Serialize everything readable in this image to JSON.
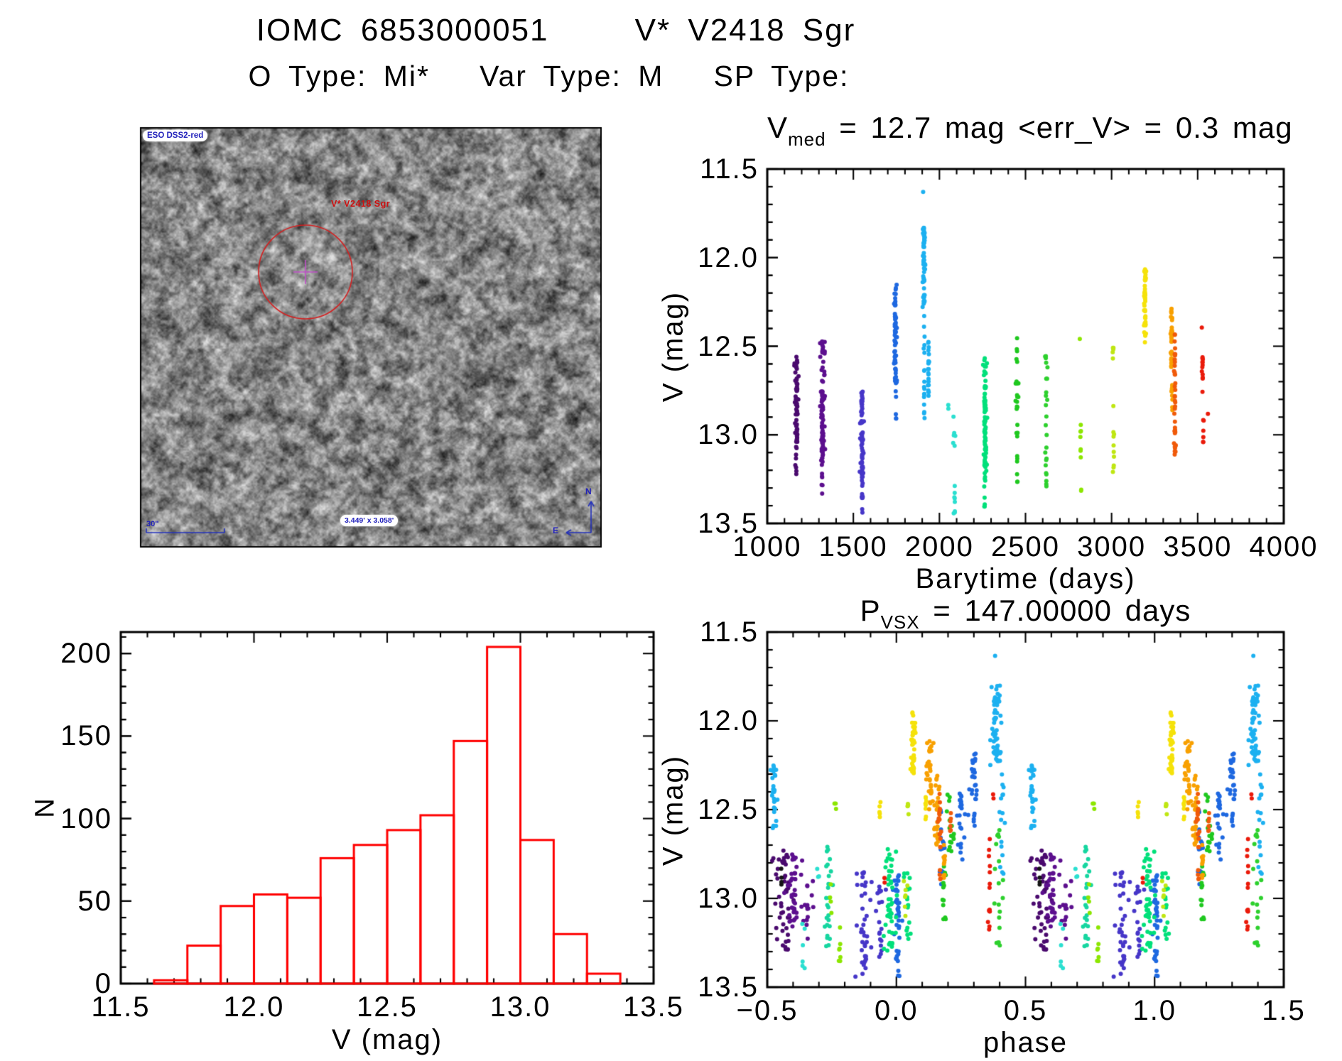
{
  "header": {
    "title": "IOMC 6853000051     V* V2418 Sgr",
    "subtitle": "O Type: Mi*   Var Type: M   SP Type:"
  },
  "sky_panel": {
    "survey_label": "ESO DSS2-red",
    "target_label": "V* V2418 Sgr",
    "scalebar_label": "30\"",
    "fov_label": "3.449' x 3.058'",
    "compass_north": "N",
    "compass_east": "E",
    "circle_color": "#d42020",
    "crosshair_color": "#c050c8",
    "annotation_color": "#2230bb"
  },
  "chart_data": [
    {
      "id": "lightcurve_barytime",
      "type": "scatter",
      "title": "V_med = 12.7 mag <err_V> = 0.3 mag",
      "title_parts": {
        "main": "V",
        "sub": "med",
        "rest": "  =  12.7 mag <err_V>  =  0.3 mag"
      },
      "xlabel": "Barytime (days)",
      "ylabel": "V (mag)",
      "xlim": [
        1000,
        4000
      ],
      "ylim": [
        11.5,
        13.5
      ],
      "xticks": [
        1000,
        1500,
        2000,
        2500,
        3000,
        3500,
        4000
      ],
      "xtick_labels": [
        "1000",
        "1500",
        "2000",
        "2500",
        "3000",
        "3500",
        "4000"
      ],
      "yticks": [
        11.5,
        12.0,
        12.5,
        13.0,
        13.5
      ],
      "ytick_labels": [
        "11.5",
        "12.0",
        "12.5",
        "13.0",
        "13.5"
      ],
      "x_minor": 100,
      "y_minor": 0.1,
      "grid": false,
      "clusters": [
        {
          "x": 1170,
          "dx": 14,
          "v0": 12.55,
          "v1": 13.05,
          "n": 38,
          "c": "#4a0a6e"
        },
        {
          "x": 1171,
          "dx": 8,
          "v0": 12.7,
          "v1": 13.1,
          "n": 22,
          "c": "#4a0a6e"
        },
        {
          "x": 1168,
          "dx": 6,
          "v0": 13.05,
          "v1": 13.3,
          "n": 7,
          "c": "#4a0a6e"
        },
        {
          "x": 1320,
          "dx": 16,
          "v0": 12.47,
          "v1": 13.2,
          "n": 55,
          "c": "#5c0f8e"
        },
        {
          "x": 1322,
          "dx": 9,
          "v0": 12.75,
          "v1": 13.15,
          "n": 40,
          "c": "#5c0f8e"
        },
        {
          "x": 1318,
          "dx": 6,
          "v0": 13.2,
          "v1": 13.35,
          "n": 6,
          "c": "#5c0f8e"
        },
        {
          "x": 1550,
          "dx": 13,
          "v0": 12.75,
          "v1": 13.3,
          "n": 45,
          "c": "#4636c8"
        },
        {
          "x": 1552,
          "dx": 7,
          "v0": 13.0,
          "v1": 13.45,
          "n": 28,
          "c": "#4636c8"
        },
        {
          "x": 1745,
          "dx": 9,
          "v0": 12.15,
          "v1": 12.8,
          "n": 42,
          "c": "#1e68e0"
        },
        {
          "x": 1742,
          "dx": 4,
          "v0": 12.25,
          "v1": 12.65,
          "n": 26,
          "c": "#1e68e0"
        },
        {
          "x": 1748,
          "dx": 3,
          "v0": 12.85,
          "v1": 13.02,
          "n": 3,
          "c": "#1e68e0"
        },
        {
          "x": 1910,
          "dx": 8,
          "v0": 11.83,
          "v1": 12.28,
          "n": 60,
          "c": "#1cb0f0"
        },
        {
          "x": 1912,
          "dx": 5,
          "v0": 12.3,
          "v1": 12.92,
          "n": 18,
          "c": "#1cb0f0"
        },
        {
          "x": 1906,
          "dx": 2,
          "v0": 11.61,
          "v1": 11.63,
          "n": 1,
          "c": "#1cb0f0"
        },
        {
          "x": 1936,
          "dx": 5,
          "v0": 12.45,
          "v1": 12.8,
          "n": 20,
          "c": "#1cb0f0"
        },
        {
          "x": 2052,
          "dx": 2,
          "v0": 12.82,
          "v1": 12.87,
          "n": 2,
          "c": "#2adfd0"
        },
        {
          "x": 2086,
          "dx": 7,
          "v0": 12.85,
          "v1": 13.08,
          "n": 6,
          "c": "#2adfd0"
        },
        {
          "x": 2088,
          "dx": 6,
          "v0": 13.2,
          "v1": 13.45,
          "n": 8,
          "c": "#2adfd0"
        },
        {
          "x": 2265,
          "dx": 13,
          "v0": 12.55,
          "v1": 13.3,
          "n": 48,
          "c": "#00e07a"
        },
        {
          "x": 2266,
          "dx": 7,
          "v0": 12.8,
          "v1": 13.2,
          "n": 40,
          "c": "#00e07a"
        },
        {
          "x": 2262,
          "dx": 5,
          "v0": 13.3,
          "v1": 13.42,
          "n": 4,
          "c": "#00e07a"
        },
        {
          "x": 2450,
          "dx": 9,
          "v0": 12.45,
          "v1": 13.05,
          "n": 22,
          "c": "#1fc81f"
        },
        {
          "x": 2452,
          "dx": 4,
          "v0": 13.1,
          "v1": 13.35,
          "n": 6,
          "c": "#1fc81f"
        },
        {
          "x": 2620,
          "dx": 8,
          "v0": 12.55,
          "v1": 13.3,
          "n": 24,
          "c": "#2dd02d"
        },
        {
          "x": 2820,
          "dx": 4,
          "v0": 12.9,
          "v1": 13.15,
          "n": 7,
          "c": "#8ce600"
        },
        {
          "x": 2816,
          "dx": 2,
          "v0": 12.42,
          "v1": 12.46,
          "n": 1,
          "c": "#8ce600"
        },
        {
          "x": 2824,
          "dx": 2,
          "v0": 13.28,
          "v1": 13.36,
          "n": 2,
          "c": "#8ce600"
        },
        {
          "x": 3008,
          "dx": 5,
          "v0": 12.48,
          "v1": 12.6,
          "n": 6,
          "c": "#bfe612"
        },
        {
          "x": 3012,
          "dx": 5,
          "v0": 12.75,
          "v1": 13.25,
          "n": 10,
          "c": "#bfe612"
        },
        {
          "x": 3195,
          "dx": 7,
          "v0": 12.05,
          "v1": 12.48,
          "n": 48,
          "c": "#f5e20a"
        },
        {
          "x": 3348,
          "dx": 6,
          "v0": 12.28,
          "v1": 12.62,
          "n": 38,
          "c": "#f8a000"
        },
        {
          "x": 3352,
          "dx": 4,
          "v0": 12.7,
          "v1": 12.88,
          "n": 12,
          "c": "#f8a000"
        },
        {
          "x": 3368,
          "dx": 6,
          "v0": 12.42,
          "v1": 13.12,
          "n": 40,
          "c": "#f05a0a"
        },
        {
          "x": 3528,
          "dx": 4,
          "v0": 12.55,
          "v1": 12.78,
          "n": 13,
          "c": "#ea1a0a"
        },
        {
          "x": 3532,
          "dx": 3,
          "v0": 12.9,
          "v1": 13.1,
          "n": 6,
          "c": "#ea1a0a"
        },
        {
          "x": 3524,
          "dx": 2,
          "v0": 12.38,
          "v1": 12.42,
          "n": 1,
          "c": "#ea1a0a"
        },
        {
          "x": 3560,
          "dx": 2,
          "v0": 12.88,
          "v1": 12.92,
          "n": 1,
          "c": "#ea1a0a"
        }
      ]
    },
    {
      "id": "histogram_v",
      "type": "bar",
      "title": "",
      "xlabel": "V (mag)",
      "ylabel": "N",
      "xlim": [
        11.5,
        13.5
      ],
      "ylim": [
        0,
        213
      ],
      "xticks": [
        11.5,
        12.0,
        12.5,
        13.0,
        13.5
      ],
      "xtick_labels": [
        "11.5",
        "12.0",
        "12.5",
        "13.0",
        "13.5"
      ],
      "yticks": [
        0,
        50,
        100,
        150,
        200
      ],
      "ytick_labels": [
        "0",
        "50",
        "100",
        "150",
        "200"
      ],
      "x_minor": 0.1,
      "y_minor": 10,
      "grid": false,
      "bin_start": 11.625,
      "bin_width": 0.125,
      "categories": [
        "11.625-11.75",
        "11.75-11.875",
        "11.875-12.0",
        "12.0-12.125",
        "12.125-12.25",
        "12.25-12.375",
        "12.375-12.5",
        "12.5-12.625",
        "12.625-12.75",
        "12.75-12.875",
        "12.875-13.0",
        "13.0-13.125",
        "13.125-13.25",
        "13.25-13.375"
      ],
      "values": [
        2,
        23,
        47,
        54,
        52,
        76,
        84,
        93,
        102,
        147,
        204,
        87,
        30,
        6
      ],
      "bar_color": "#ff0000"
    },
    {
      "id": "lightcurve_phase",
      "type": "scatter",
      "title": "P_VSX = 147.00000 days",
      "title_parts": {
        "main": "P",
        "sub": "VSX",
        "rest": "  =  147.00000 days"
      },
      "xlabel": "phase",
      "ylabel": "V (mag)",
      "xlim": [
        -0.5,
        1.5
      ],
      "ylim": [
        11.5,
        13.5
      ],
      "xticks": [
        -0.5,
        0.0,
        0.5,
        1.0,
        1.5
      ],
      "xtick_labels": [
        "−0.5",
        "0.0",
        "0.5",
        "1.0",
        "1.5"
      ],
      "yticks": [
        11.5,
        12.0,
        12.5,
        13.0,
        13.5
      ],
      "ytick_labels": [
        "11.5",
        "12.0",
        "12.5",
        "13.0",
        "13.5"
      ],
      "x_minor": 0.1,
      "y_minor": 0.1,
      "grid": false,
      "fold_repeat": true,
      "period_days": 147.0,
      "clusters": [
        {
          "x": 0.565,
          "dx": 0.05,
          "v0": 12.72,
          "v1": 13.3,
          "n": 50,
          "c": "#4a0a6e"
        },
        {
          "x": 0.6,
          "dx": 0.04,
          "v0": 12.75,
          "v1": 13.2,
          "n": 40,
          "c": "#5c0f8e"
        },
        {
          "x": 0.655,
          "dx": 0.025,
          "v0": 12.9,
          "v1": 13.25,
          "n": 14,
          "c": "#5c0f8e"
        },
        {
          "x": 0.875,
          "dx": 0.035,
          "v0": 12.85,
          "v1": 13.45,
          "n": 40,
          "c": "#4636c8"
        },
        {
          "x": 0.94,
          "dx": 0.02,
          "v0": 12.9,
          "v1": 13.35,
          "n": 20,
          "c": "#4636c8"
        },
        {
          "x": 0.3,
          "dx": 0.022,
          "v0": 12.18,
          "v1": 12.6,
          "n": 28,
          "c": "#1e68e0"
        },
        {
          "x": 0.25,
          "dx": 0.018,
          "v0": 12.4,
          "v1": 12.8,
          "n": 22,
          "c": "#1e68e0"
        },
        {
          "x": 0.175,
          "dx": 0.015,
          "v0": 12.5,
          "v1": 12.95,
          "n": 16,
          "c": "#1e68e0"
        },
        {
          "x": 0.005,
          "dx": 0.02,
          "v0": 12.85,
          "v1": 13.45,
          "n": 40,
          "c": "#1e68e0"
        },
        {
          "x": 0.385,
          "dx": 0.022,
          "v0": 11.8,
          "v1": 12.25,
          "n": 60,
          "c": "#1cb0f0"
        },
        {
          "x": 0.41,
          "dx": 0.015,
          "v0": 12.3,
          "v1": 12.9,
          "n": 16,
          "c": "#1cb0f0"
        },
        {
          "x": 0.385,
          "dx": 0.003,
          "v0": 11.62,
          "v1": 11.64,
          "n": 1,
          "c": "#1cb0f0"
        },
        {
          "x": 0.525,
          "dx": 0.018,
          "v0": 12.25,
          "v1": 12.62,
          "n": 30,
          "c": "#1cb0f0"
        },
        {
          "x": 0.64,
          "dx": 0.015,
          "v0": 13.1,
          "v1": 13.4,
          "n": 6,
          "c": "#2adfd0"
        },
        {
          "x": 0.7,
          "dx": 0.01,
          "v0": 12.8,
          "v1": 12.9,
          "n": 3,
          "c": "#2adfd0"
        },
        {
          "x": 0.735,
          "dx": 0.022,
          "v0": 12.68,
          "v1": 13.3,
          "n": 26,
          "c": "#16d6a0"
        },
        {
          "x": 0.975,
          "dx": 0.028,
          "v0": 12.7,
          "v1": 13.3,
          "n": 48,
          "c": "#00e07a"
        },
        {
          "x": 0.045,
          "dx": 0.018,
          "v0": 12.85,
          "v1": 13.25,
          "n": 18,
          "c": "#00e07a"
        },
        {
          "x": 0.21,
          "dx": 0.018,
          "v0": 12.4,
          "v1": 12.75,
          "n": 16,
          "c": "#1fc81f"
        },
        {
          "x": 0.185,
          "dx": 0.012,
          "v0": 12.8,
          "v1": 13.25,
          "n": 12,
          "c": "#1fc81f"
        },
        {
          "x": 0.395,
          "dx": 0.018,
          "v0": 12.55,
          "v1": 13.35,
          "n": 20,
          "c": "#2dd02d"
        },
        {
          "x": 0.765,
          "dx": 0.006,
          "v0": 12.44,
          "v1": 12.5,
          "n": 3,
          "c": "#8ce600"
        },
        {
          "x": 0.78,
          "dx": 0.01,
          "v0": 13.1,
          "v1": 13.38,
          "n": 7,
          "c": "#8ce600"
        },
        {
          "x": 0.745,
          "dx": 0.008,
          "v0": 12.92,
          "v1": 13.1,
          "n": 4,
          "c": "#8ce600"
        },
        {
          "x": 0.045,
          "dx": 0.006,
          "v0": 12.46,
          "v1": 12.56,
          "n": 5,
          "c": "#bfe612"
        },
        {
          "x": 0.035,
          "dx": 0.008,
          "v0": 12.9,
          "v1": 13.2,
          "n": 7,
          "c": "#bfe612"
        },
        {
          "x": 0.065,
          "dx": 0.012,
          "v0": 11.95,
          "v1": 12.3,
          "n": 42,
          "c": "#f5e20a"
        },
        {
          "x": 0.935,
          "dx": 0.006,
          "v0": 12.44,
          "v1": 12.56,
          "n": 5,
          "c": "#f5e20a"
        },
        {
          "x": 0.115,
          "dx": 0.008,
          "v0": 12.42,
          "v1": 12.6,
          "n": 8,
          "c": "#f5e20a"
        },
        {
          "x": 0.13,
          "dx": 0.016,
          "v0": 12.1,
          "v1": 12.5,
          "n": 34,
          "c": "#f8a000"
        },
        {
          "x": 0.158,
          "dx": 0.012,
          "v0": 12.3,
          "v1": 12.7,
          "n": 26,
          "c": "#f8a000"
        },
        {
          "x": 0.185,
          "dx": 0.01,
          "v0": 12.68,
          "v1": 12.9,
          "n": 10,
          "c": "#f8a000"
        },
        {
          "x": 0.168,
          "dx": 0.008,
          "v0": 12.4,
          "v1": 12.95,
          "n": 20,
          "c": "#f05a0a"
        },
        {
          "x": 0.21,
          "dx": 0.006,
          "v0": 12.5,
          "v1": 12.65,
          "n": 6,
          "c": "#f05a0a"
        },
        {
          "x": 0.36,
          "dx": 0.006,
          "v0": 12.55,
          "v1": 13.2,
          "n": 14,
          "c": "#ea1a0a"
        },
        {
          "x": 0.375,
          "dx": 0.003,
          "v0": 12.4,
          "v1": 12.44,
          "n": 2,
          "c": "#ea1a0a"
        },
        {
          "x": 0.955,
          "dx": 0.004,
          "v0": 12.88,
          "v1": 12.94,
          "n": 2,
          "c": "#ea1a0a"
        },
        {
          "x": 0.555,
          "dx": 0.005,
          "v0": 12.8,
          "v1": 12.95,
          "n": 4,
          "c": "#151515"
        }
      ]
    }
  ]
}
